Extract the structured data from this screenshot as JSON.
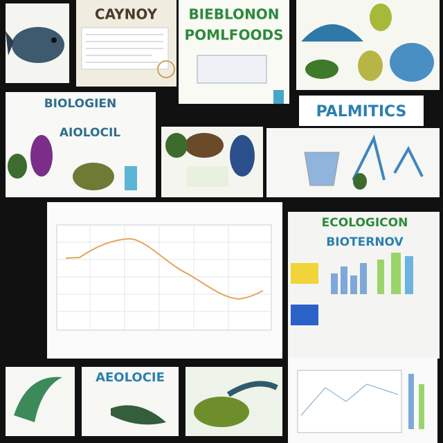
{
  "tiles": [
    {
      "title": "CAYNOY"
    },
    {
      "title": "BIEBLONON",
      "subtitle": "POMLFOODS"
    },
    {
      "title": "BIOLOGIEN",
      "subtitle": "AIOLOCIL"
    },
    {
      "title": "PALMITICS"
    },
    {
      "title": "ECOLOGICON",
      "subtitle": "BIOTERNOV"
    },
    {
      "title": "AEOLOCIE"
    }
  ]
}
